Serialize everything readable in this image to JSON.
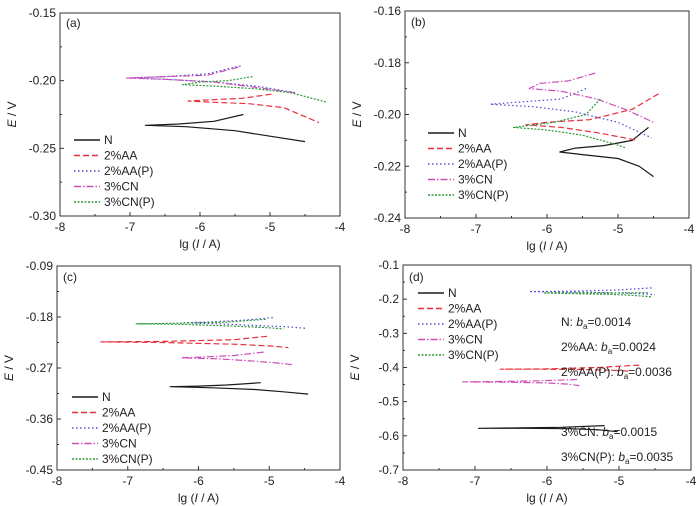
{
  "styles": {
    "N": {
      "color": "#1a1a1a",
      "dash": ""
    },
    "2%AA": {
      "color": "#e8303a",
      "dash": "6,3"
    },
    "2%AA(P)": {
      "color": "#4a4ad0",
      "dash": "1.5,2.5"
    },
    "3%CN": {
      "color": "#cc4fb8",
      "dash": "7,2,1.5,2"
    },
    "3%CN(P)": {
      "color": "#2e9a3a",
      "dash": "2,1.5"
    }
  },
  "chart_data": [
    {
      "type": "line",
      "panel": "(a)",
      "xlabel": "lg (I / A)",
      "ylabel": "E / V",
      "xlim": [
        -8,
        -4
      ],
      "ylim": [
        -0.3,
        -0.15
      ],
      "xticks": [
        "-8",
        "-7",
        "-6",
        "-5",
        "-4"
      ],
      "yticks": [
        "-0.30",
        "-0.25",
        "-0.20",
        "-0.15"
      ],
      "yvals": [
        -0.3,
        -0.25,
        -0.2,
        -0.15
      ],
      "legend_position": "bottom-left",
      "series": [
        {
          "name": "N",
          "x": [
            -5.38,
            -5.8,
            -6.3,
            -6.78,
            -6.2,
            -5.5,
            -5.0,
            -4.5
          ],
          "y": [
            -0.225,
            -0.23,
            -0.232,
            -0.233,
            -0.234,
            -0.237,
            -0.241,
            -0.245
          ]
        },
        {
          "name": "2%AA",
          "x": [
            -4.98,
            -5.4,
            -5.8,
            -6.17,
            -5.8,
            -5.3,
            -4.8,
            -4.3
          ],
          "y": [
            -0.21,
            -0.213,
            -0.214,
            -0.215,
            -0.216,
            -0.217,
            -0.22,
            -0.231
          ]
        },
        {
          "name": "2%AA(P)",
          "x": [
            -5.42,
            -5.9,
            -6.5,
            -7.0,
            -6.5,
            -5.8,
            -5.2,
            -4.62
          ],
          "y": [
            -0.189,
            -0.195,
            -0.197,
            -0.198,
            -0.199,
            -0.201,
            -0.204,
            -0.209
          ]
        },
        {
          "name": "3%CN",
          "x": [
            -5.45,
            -5.9,
            -6.5,
            -7.05,
            -6.5,
            -5.8,
            -5.2,
            -4.65
          ],
          "y": [
            -0.19,
            -0.196,
            -0.197,
            -0.198,
            -0.199,
            -0.201,
            -0.205,
            -0.209
          ]
        },
        {
          "name": "3%CN(P)",
          "x": [
            -5.25,
            -5.6,
            -6.0,
            -6.25,
            -5.8,
            -5.2,
            -4.7,
            -4.18
          ],
          "y": [
            -0.197,
            -0.2,
            -0.201,
            -0.203,
            -0.204,
            -0.206,
            -0.209,
            -0.216
          ]
        }
      ]
    },
    {
      "type": "line",
      "panel": "(b)",
      "xlabel": "lg (I / A)",
      "ylabel": "E / V",
      "xlim": [
        -8,
        -4
      ],
      "ylim": [
        -0.24,
        -0.16
      ],
      "xticks": [
        "-8",
        "-7",
        "-6",
        "-5",
        "-4"
      ],
      "yticks": [
        "-0.24",
        "-0.22",
        "-0.20",
        "-0.18",
        "-0.16"
      ],
      "yvals": [
        -0.24,
        -0.22,
        -0.2,
        -0.18,
        -0.16
      ],
      "legend_position": "bottom-left",
      "series": [
        {
          "name": "N",
          "x": [
            -4.57,
            -4.8,
            -5.2,
            -5.6,
            -5.82,
            -5.5,
            -5.0,
            -4.7,
            -4.5
          ],
          "y": [
            -0.205,
            -0.21,
            -0.212,
            -0.213,
            -0.2145,
            -0.2155,
            -0.217,
            -0.22,
            -0.224
          ]
        },
        {
          "name": "2%AA",
          "x": [
            -4.43,
            -4.8,
            -5.4,
            -6.0,
            -6.3,
            -5.8,
            -5.3,
            -4.72
          ],
          "y": [
            -0.192,
            -0.198,
            -0.202,
            -0.203,
            -0.204,
            -0.205,
            -0.207,
            -0.21
          ]
        },
        {
          "name": "2%AA(P)",
          "x": [
            -5.45,
            -5.8,
            -6.3,
            -6.8,
            -6.2,
            -5.6,
            -5.0,
            -4.53
          ],
          "y": [
            -0.19,
            -0.194,
            -0.195,
            -0.196,
            -0.197,
            -0.199,
            -0.203,
            -0.209
          ]
        },
        {
          "name": "3%CN",
          "x": [
            -5.32,
            -5.7,
            -6.1,
            -6.25,
            -5.8,
            -5.3,
            -4.9,
            -4.5
          ],
          "y": [
            -0.184,
            -0.187,
            -0.188,
            -0.19,
            -0.191,
            -0.194,
            -0.198,
            -0.203
          ]
        },
        {
          "name": "3%CN(P)",
          "x": [
            -5.25,
            -5.45,
            -5.9,
            -6.47,
            -6.0,
            -5.5,
            -5.1,
            -4.88
          ],
          "y": [
            -0.194,
            -0.2,
            -0.203,
            -0.205,
            -0.206,
            -0.208,
            -0.211,
            -0.213
          ]
        }
      ]
    },
    {
      "type": "line",
      "panel": "(c)",
      "xlabel": "lg (I / A)",
      "ylabel": "E / V",
      "xlim": [
        -8,
        -4
      ],
      "ylim": [
        -0.45,
        -0.09
      ],
      "xticks": [
        "-8",
        "-7",
        "-6",
        "-5",
        "-4"
      ],
      "yticks": [
        "-0.45",
        "-0.36",
        "-0.27",
        "-0.18",
        "-0.09"
      ],
      "yvals": [
        -0.45,
        -0.36,
        -0.27,
        -0.18,
        -0.09
      ],
      "legend_position": "bottom-left",
      "series": [
        {
          "name": "N",
          "x": [
            -5.12,
            -5.6,
            -6.0,
            -6.4,
            -5.8,
            -5.2,
            -4.8,
            -4.45
          ],
          "y": [
            -0.296,
            -0.3,
            -0.302,
            -0.303,
            -0.305,
            -0.308,
            -0.312,
            -0.316
          ]
        },
        {
          "name": "2%AA",
          "x": [
            -5.03,
            -5.5,
            -6.5,
            -7.38,
            -6.5,
            -5.5,
            -5.0,
            -4.73
          ],
          "y": [
            -0.214,
            -0.22,
            -0.223,
            -0.224,
            -0.225,
            -0.228,
            -0.231,
            -0.234
          ]
        },
        {
          "name": "2%AA(P)",
          "x": [
            -4.95,
            -5.4,
            -5.9,
            -6.2,
            -5.7,
            -5.2,
            -4.8,
            -4.48
          ],
          "y": [
            -0.181,
            -0.186,
            -0.189,
            -0.19,
            -0.192,
            -0.195,
            -0.197,
            -0.2
          ]
        },
        {
          "name": "3%CN",
          "x": [
            -5.08,
            -5.5,
            -6.0,
            -6.25,
            -5.7,
            -5.2,
            -4.9,
            -4.67
          ],
          "y": [
            -0.242,
            -0.248,
            -0.251,
            -0.252,
            -0.254,
            -0.258,
            -0.261,
            -0.264
          ]
        },
        {
          "name": "3%CN(P)",
          "x": [
            -5.05,
            -5.6,
            -6.3,
            -6.88,
            -6.2,
            -5.5,
            -5.0,
            -4.8
          ],
          "y": [
            -0.184,
            -0.189,
            -0.191,
            -0.192,
            -0.193,
            -0.196,
            -0.199,
            -0.201
          ]
        }
      ]
    },
    {
      "type": "line",
      "panel": "(d)",
      "xlabel": "lg (I / A)",
      "ylabel": "E / V",
      "xlim": [
        -8,
        -4
      ],
      "ylim": [
        -0.7,
        -0.1
      ],
      "xticks": [
        "-8",
        "-7",
        "-6",
        "-5",
        "-4"
      ],
      "yticks": [
        "-0.7",
        "-0.6",
        "-0.5",
        "-0.4",
        "-0.3",
        "-0.2",
        "-0.1"
      ],
      "yvals": [
        -0.7,
        -0.6,
        -0.5,
        -0.4,
        -0.3,
        -0.2,
        -0.1
      ],
      "legend_position": "top-left",
      "series": [
        {
          "name": "N",
          "x": [
            -5.2,
            -5.8,
            -6.5,
            -6.95,
            -6.3,
            -5.7,
            -5.3,
            -5.02
          ],
          "y": [
            -0.57,
            -0.575,
            -0.577,
            -0.578,
            -0.578,
            -0.579,
            -0.582,
            -0.588
          ]
        },
        {
          "name": "2%AA",
          "x": [
            -4.72,
            -5.3,
            -6.0,
            -6.65,
            -6.0,
            -5.4,
            -5.0,
            -4.84
          ],
          "y": [
            -0.393,
            -0.4,
            -0.404,
            -0.405,
            -0.405,
            -0.406,
            -0.409,
            -0.411
          ]
        },
        {
          "name": "2%AA(P)",
          "x": [
            -4.55,
            -5.0,
            -5.7,
            -6.25,
            -5.7,
            -5.1,
            -4.7,
            -4.5
          ],
          "y": [
            -0.167,
            -0.173,
            -0.177,
            -0.178,
            -0.179,
            -0.181,
            -0.184,
            -0.187
          ]
        },
        {
          "name": "3%CN",
          "x": [
            -5.58,
            -6.1,
            -6.7,
            -7.17,
            -6.6,
            -6.0,
            -5.7,
            -5.55
          ],
          "y": [
            -0.435,
            -0.439,
            -0.441,
            -0.442,
            -0.443,
            -0.445,
            -0.449,
            -0.453
          ]
        },
        {
          "name": "3%CN(P)",
          "x": [
            -4.6,
            -5.1,
            -5.6,
            -6.05,
            -5.6,
            -5.1,
            -4.8,
            -4.55
          ],
          "y": [
            -0.181,
            -0.182,
            -0.182,
            -0.182,
            -0.184,
            -0.186,
            -0.189,
            -0.193
          ]
        }
      ],
      "annotations": [
        {
          "prefix": "N: ",
          "value": "=0.0014"
        },
        {
          "prefix": "2%AA: ",
          "value": "=0.0024"
        },
        {
          "prefix": "2%AA(P): ",
          "value": "=0.0036"
        },
        {
          "prefix": "3%CN: ",
          "value": "=0.0015"
        },
        {
          "prefix": "3%CN(P): ",
          "value": "=0.0035"
        }
      ],
      "annotation_symbol": "b",
      "annotation_subscript": "a"
    }
  ],
  "legend": [
    "N",
    "2%AA",
    "2%AA(P)",
    "3%CN",
    "3%CN(P)"
  ],
  "panel_labels": [
    "(a)",
    "(b)",
    "(c)",
    "(d)"
  ],
  "axis_labels": {
    "x_prefix": "lg (",
    "x_italic": "I",
    "x_suffix": " / A)",
    "y_italic": "E",
    "y_suffix": " / V"
  }
}
